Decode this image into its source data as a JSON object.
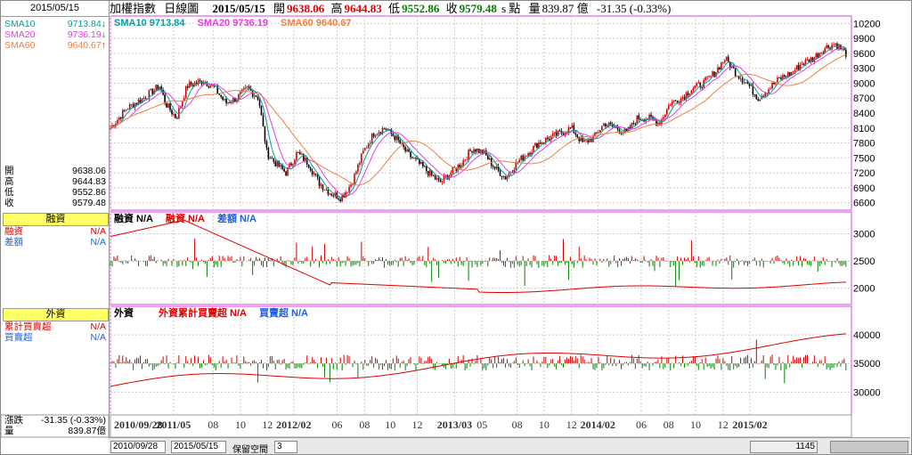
{
  "left_panel": {
    "date": "2015/05/15",
    "sma": [
      {
        "label": "SMA10",
        "value": "9713.84",
        "dir": "down",
        "color": "#00a0a0"
      },
      {
        "label": "SMA20",
        "value": "9736.19",
        "dir": "down",
        "color": "#e040e0"
      },
      {
        "label": "SMA60",
        "value": "9640.67",
        "dir": "up",
        "color": "#f08040"
      }
    ],
    "ohlc": [
      {
        "label": "開",
        "value": "9638.06"
      },
      {
        "label": "高",
        "value": "9644.83"
      },
      {
        "label": "低",
        "value": "9552.86"
      },
      {
        "label": "收",
        "value": "9579.48"
      }
    ],
    "margin_header": "融資",
    "margin_rows": [
      {
        "label": "融資",
        "value": "N/A",
        "color": "#e00000"
      },
      {
        "label": "差額",
        "value": "N/A",
        "color": "#2060e0"
      }
    ],
    "foreign_header": "外資",
    "foreign_rows": [
      {
        "label": "累計買賣超",
        "value": "N/A",
        "color": "#e00000"
      },
      {
        "label": "買賣超",
        "value": "N/A",
        "color": "#2060e0"
      }
    ],
    "change": {
      "label": "漲跌",
      "value": "-31.35 (-0.33%)"
    },
    "volume": {
      "label": "量",
      "value": "839.87億"
    }
  },
  "top_bar": {
    "name": "加權指數",
    "period": "日線圖",
    "date": "2015/05/15",
    "open_label": "開",
    "open": "9638.06",
    "high_label": "高",
    "high": "9644.83",
    "low_label": "低",
    "low": "9552.86",
    "close_label": "收",
    "close": "9579.48",
    "unit": "s 點",
    "vol_label": "量",
    "vol": "839.87 億",
    "change": "-31.35 (-0.33%)"
  },
  "bottom_bar": {
    "start_date": "2010/09/28",
    "end_date": "2015/05/15",
    "keep_label": "保留空間",
    "keep_value": "3",
    "count": "1145"
  },
  "chart_data": [
    {
      "type": "line",
      "name": "price",
      "legend": [
        {
          "label": "SMA10",
          "value": "9713.84",
          "color": "#00a0a0"
        },
        {
          "label": "SMA20",
          "value": "9736.19",
          "color": "#e040e0"
        },
        {
          "label": "SMA60",
          "value": "9640.67",
          "color": "#f08040"
        }
      ],
      "y_ticks": [
        6600,
        6900,
        7200,
        7500,
        7800,
        8100,
        8400,
        8700,
        9000,
        9300,
        9600,
        9900,
        10200
      ],
      "ylim": [
        6450,
        10350
      ],
      "x_ticks": [
        "2010/09/28",
        "2011/05",
        "08",
        "10",
        "12",
        "2012/02",
        "06",
        "08",
        "10",
        "12",
        "2013/03",
        "05",
        "08",
        "10",
        "12",
        "2014/02",
        "06",
        "08",
        "10",
        "12",
        "2015/02"
      ],
      "x_tick_pos": [
        0,
        0.115,
        0.187,
        0.237,
        0.286,
        0.334,
        0.413,
        0.463,
        0.51,
        0.559,
        0.627,
        0.677,
        0.741,
        0.79,
        0.84,
        0.888,
        0.967,
        1.017,
        1.066,
        1.116,
        1.165
      ],
      "close_path": [
        [
          0,
          8100
        ],
        [
          0.03,
          8500
        ],
        [
          0.06,
          8700
        ],
        [
          0.09,
          8950
        ],
        [
          0.1,
          8600
        ],
        [
          0.12,
          8300
        ],
        [
          0.14,
          8950
        ],
        [
          0.17,
          9050
        ],
        [
          0.19,
          8900
        ],
        [
          0.21,
          8600
        ],
        [
          0.23,
          8700
        ],
        [
          0.25,
          8900
        ],
        [
          0.27,
          8700
        ],
        [
          0.285,
          7600
        ],
        [
          0.3,
          7400
        ],
        [
          0.32,
          7200
        ],
        [
          0.34,
          7600
        ],
        [
          0.36,
          7400
        ],
        [
          0.38,
          7000
        ],
        [
          0.4,
          6800
        ],
        [
          0.42,
          6700
        ],
        [
          0.44,
          7000
        ],
        [
          0.46,
          7600
        ],
        [
          0.48,
          8000
        ],
        [
          0.5,
          8100
        ],
        [
          0.52,
          7900
        ],
        [
          0.54,
          7600
        ],
        [
          0.56,
          7400
        ],
        [
          0.58,
          7200
        ],
        [
          0.6,
          7000
        ],
        [
          0.62,
          7200
        ],
        [
          0.64,
          7400
        ],
        [
          0.66,
          7700
        ],
        [
          0.68,
          7600
        ],
        [
          0.7,
          7300
        ],
        [
          0.72,
          7100
        ],
        [
          0.74,
          7400
        ],
        [
          0.76,
          7600
        ],
        [
          0.78,
          7800
        ],
        [
          0.8,
          7900
        ],
        [
          0.82,
          8000
        ],
        [
          0.84,
          8100
        ],
        [
          0.86,
          7800
        ],
        [
          0.88,
          7900
        ],
        [
          0.9,
          8200
        ],
        [
          0.92,
          8100
        ],
        [
          0.94,
          8000
        ],
        [
          0.96,
          8300
        ],
        [
          0.98,
          8300
        ],
        [
          1.0,
          8200
        ],
        [
          1.02,
          8600
        ],
        [
          1.04,
          8700
        ],
        [
          1.06,
          8900
        ],
        [
          1.08,
          9000
        ],
        [
          1.1,
          9200
        ],
        [
          1.12,
          9500
        ],
        [
          1.14,
          9200
        ],
        [
          1.16,
          9000
        ],
        [
          1.18,
          8700
        ],
        [
          1.2,
          8900
        ],
        [
          1.22,
          9100
        ],
        [
          1.24,
          9200
        ],
        [
          1.26,
          9400
        ],
        [
          1.28,
          9500
        ],
        [
          1.3,
          9700
        ],
        [
          1.32,
          9800
        ],
        [
          1.34,
          9600
        ]
      ]
    },
    {
      "type": "bar",
      "name": "margin",
      "legend": [
        {
          "label": "融資",
          "value": "N/A",
          "color": "#000"
        },
        {
          "label": "融資",
          "value": "N/A",
          "color": "#e00000"
        },
        {
          "label": "差額",
          "value": "N/A",
          "color": "#2060e0"
        }
      ],
      "y_ticks": [
        2000,
        2500,
        3000
      ]
    },
    {
      "type": "bar",
      "name": "foreign",
      "legend": [
        {
          "label": "外資",
          "value": "",
          "color": "#000"
        },
        {
          "label": "外資累計買賣超",
          "value": "N/A",
          "color": "#e00000"
        },
        {
          "label": "買賣超",
          "value": "N/A",
          "color": "#2060e0"
        }
      ],
      "y_ticks": [
        30000,
        35000,
        40000
      ]
    }
  ]
}
